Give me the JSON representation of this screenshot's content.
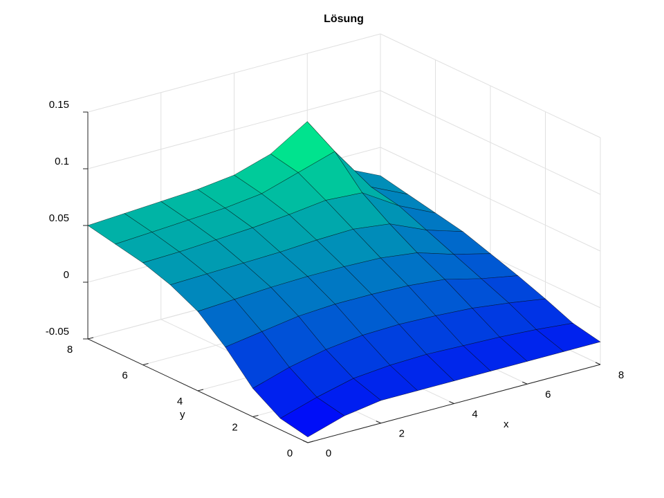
{
  "chart_data": {
    "type": "surface",
    "title": "Lösung",
    "x_label": "x",
    "y_label": "y",
    "x": [
      0,
      1,
      2,
      3,
      4,
      5,
      6,
      7,
      8
    ],
    "y": [
      0,
      1,
      2,
      3,
      4,
      5,
      6,
      7,
      8
    ],
    "z": [
      [
        -0.045,
        -0.035,
        -0.03,
        -0.03,
        -0.03,
        -0.03,
        -0.03,
        -0.03,
        -0.03
      ],
      [
        -0.04,
        -0.03,
        -0.022,
        -0.019,
        -0.018,
        -0.019,
        -0.02,
        -0.022,
        -0.025
      ],
      [
        -0.025,
        -0.015,
        -0.008,
        -0.004,
        -0.003,
        -0.004,
        -0.006,
        -0.01,
        -0.015
      ],
      [
        0.0,
        0.005,
        0.01,
        0.012,
        0.012,
        0.011,
        0.008,
        0.0,
        -0.006
      ],
      [
        0.02,
        0.022,
        0.024,
        0.025,
        0.025,
        0.024,
        0.02,
        0.01,
        0.002
      ],
      [
        0.032,
        0.033,
        0.034,
        0.035,
        0.037,
        0.038,
        0.034,
        0.02,
        0.01
      ],
      [
        0.04,
        0.041,
        0.043,
        0.045,
        0.048,
        0.052,
        0.05,
        0.03,
        0.015
      ],
      [
        0.045,
        0.047,
        0.049,
        0.051,
        0.055,
        0.065,
        0.075,
        0.035,
        0.02
      ],
      [
        0.05,
        0.052,
        0.054,
        0.056,
        0.06,
        0.07,
        0.09,
        0.04,
        0.025
      ]
    ],
    "xlim": [
      0,
      8
    ],
    "ylim": [
      0,
      8
    ],
    "zlim": [
      -0.05,
      0.15
    ],
    "xticks": [
      0,
      2,
      4,
      6,
      8
    ],
    "yticks": [
      0,
      2,
      4,
      6,
      8
    ],
    "zticks": [
      -0.05,
      0,
      0.05,
      0.1,
      0.15
    ],
    "grid": true,
    "colormap": [
      "#0000ff",
      "#00ff80"
    ]
  }
}
